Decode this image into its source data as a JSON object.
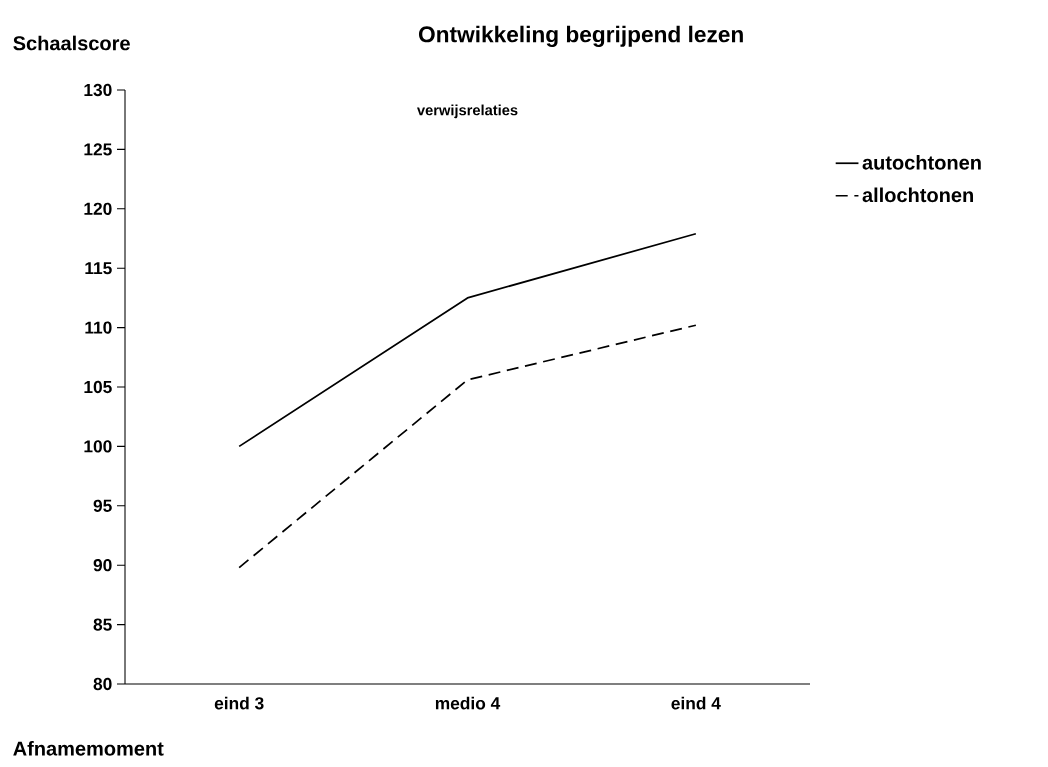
{
  "chart_data": {
    "type": "line",
    "title": "Ontwikkeling begrijpend lezen",
    "subtitle": "verwijsrelaties",
    "xlabel": "Afnamemoment",
    "ylabel": "Schaalscore",
    "categories": [
      "eind 3",
      "medio 4",
      "eind 4"
    ],
    "series": [
      {
        "name": "autochtonen",
        "color": "#000000",
        "line_style": "solid",
        "values": [
          100,
          112.5,
          117.9
        ]
      },
      {
        "name": "allochtonen",
        "color": "#000000",
        "line_style": "dashed",
        "values": [
          89.8,
          105.6,
          110.2
        ]
      }
    ],
    "ylim": [
      80,
      130
    ],
    "yticks": [
      80,
      85,
      90,
      95,
      100,
      105,
      110,
      115,
      120,
      125,
      130
    ],
    "grid": false,
    "legend": "top right",
    "marker": "none"
  }
}
